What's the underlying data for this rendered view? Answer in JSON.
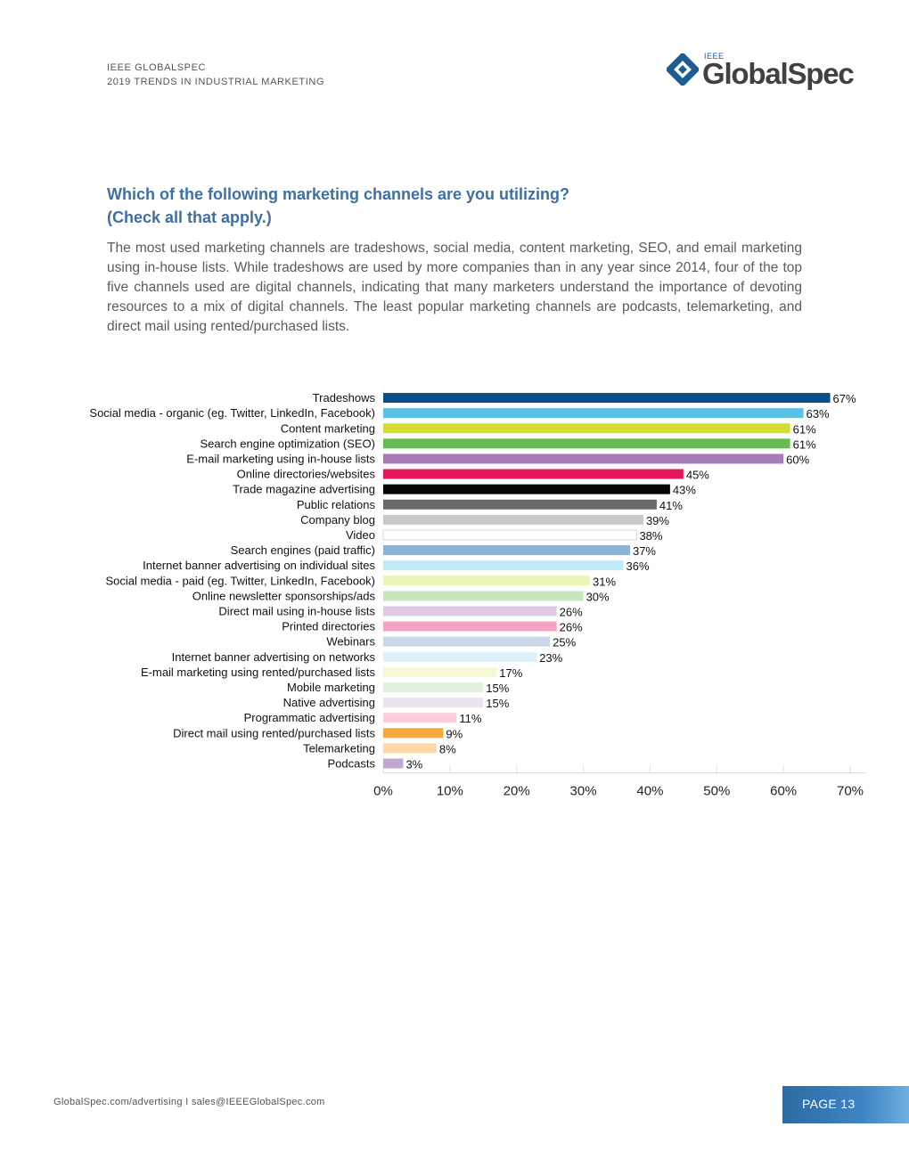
{
  "header": {
    "line1": "IEEE GLOBALSPEC",
    "line2": "2019 TRENDS IN INDUSTRIAL MARKETING",
    "logo_small": "IEEE",
    "logo_main": "GlobalSpec"
  },
  "title": {
    "line1": "Which of the following marketing channels are you utilizing?",
    "line2": "(Check all that apply.)"
  },
  "paragraph": "The most used marketing channels are tradeshows, social media, content marketing, SEO, and email marketing using in-house lists. While tradeshows are used by more companies than in any year since 2014, four of the top five channels used are digital channels, indicating that many marketers understand the importance of devoting resources to a mix of digital channels. The least popular marketing channels are podcasts, telemarketing, and direct mail using rented/purchased lists.",
  "chart_data": {
    "type": "bar",
    "orientation": "horizontal",
    "title": "",
    "xlabel": "",
    "ylabel": "",
    "xlim": [
      0,
      70
    ],
    "x_ticks": [
      "0%",
      "10%",
      "20%",
      "30%",
      "40%",
      "50%",
      "60%",
      "70%"
    ],
    "x_tick_values": [
      0,
      10,
      20,
      30,
      40,
      50,
      60,
      70
    ],
    "categories": [
      "Tradeshows",
      "Social media - organic (eg. Twitter, LinkedIn, Facebook)",
      "Content marketing",
      "Search engine optimization (SEO)",
      "E-mail marketing using in-house lists",
      "Online directories/websites",
      "Trade magazine advertising",
      "Public relations",
      "Company blog",
      "Video",
      "Search engines (paid traffic)",
      "Internet banner advertising on individual sites",
      "Social media - paid (eg. Twitter, LinkedIn, Facebook)",
      "Online newsletter sponsorships/ads",
      "Direct mail using in-house lists",
      "Printed directories",
      "Webinars",
      "Internet banner advertising on networks",
      "E-mail marketing using rented/purchased lists",
      "Mobile marketing",
      "Native advertising",
      "Programmatic advertising",
      "Direct mail using rented/purchased lists",
      "Telemarketing",
      "Podcasts"
    ],
    "values": [
      67,
      63,
      61,
      61,
      60,
      45,
      43,
      41,
      39,
      38,
      37,
      36,
      31,
      30,
      26,
      26,
      25,
      23,
      17,
      15,
      15,
      11,
      9,
      8,
      3
    ],
    "value_labels": [
      "67%",
      "63%",
      "61%",
      "61%",
      "60%",
      "45%",
      "43%",
      "41%",
      "39%",
      "38%",
      "37%",
      "36%",
      "31%",
      "30%",
      "26%",
      "26%",
      "25%",
      "23%",
      "17%",
      "15%",
      "15%",
      "11%",
      "9%",
      "8%",
      "3%"
    ],
    "colors": [
      "#0b4f8a",
      "#5bc1e6",
      "#d4de2e",
      "#66bb55",
      "#a77bb7",
      "#e5145d",
      "#050505",
      "#6a6a6a",
      "#c8c8c8",
      "#ffffff",
      "#8fb3d6",
      "#c2e9f7",
      "#eef5b8",
      "#c7e6bf",
      "#dfc8e3",
      "#f4a3c3",
      "#c9d7e8",
      "#dcf1f9",
      "#f6f9d4",
      "#e2f1de",
      "#ece3f1",
      "#f9cfe0",
      "#f5a93a",
      "#fdd9a8",
      "#c3a7d0"
    ]
  },
  "footer": {
    "links": "GlobalSpec.com/advertising  I  sales@IEEEGlobalSpec.com",
    "page": "PAGE 13"
  }
}
